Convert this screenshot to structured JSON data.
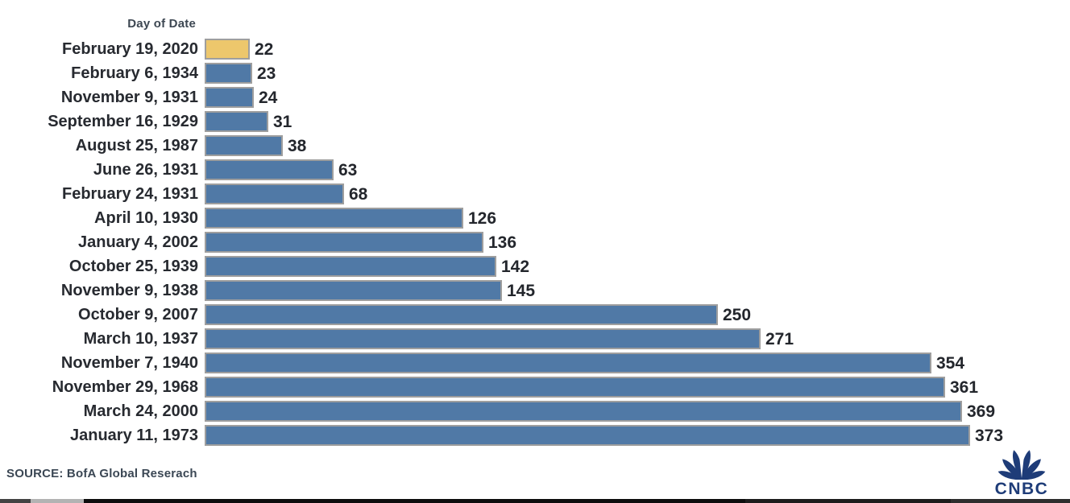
{
  "chart_data": {
    "type": "bar",
    "orientation": "horizontal",
    "title": "Day of Date",
    "categories": [
      "February 19, 2020",
      "February 6, 1934",
      "November 9, 1931",
      "September 16, 1929",
      "August 25, 1987",
      "June 26, 1931",
      "February 24, 1931",
      "April 10, 1930",
      "January 4, 2002",
      "October 25, 1939",
      "November 9, 1938",
      "October 9, 2007",
      "March 10, 1937",
      "November 7, 1940",
      "November 29, 1968",
      "March 24, 2000",
      "January 11, 1973"
    ],
    "values": [
      22,
      23,
      24,
      31,
      38,
      63,
      68,
      126,
      136,
      142,
      145,
      250,
      271,
      354,
      361,
      369,
      373
    ],
    "value_labels_shown": true,
    "highlight_index": 0,
    "highlight_category": "February 19, 2020",
    "xlim": [
      0,
      373
    ],
    "grid": false,
    "legend": "none",
    "colors": {
      "bar": "#5079a6",
      "highlight_bar": "#edc76c",
      "bar_border": "#9e9e9e",
      "label_text": "#272a30",
      "value_text": "#23262c",
      "axis_title_text": "#3d4752"
    }
  },
  "source": {
    "text": "SOURCE: BofA Global Reserach"
  },
  "logo": {
    "text": "CNBC",
    "color": "#1e3c78"
  }
}
